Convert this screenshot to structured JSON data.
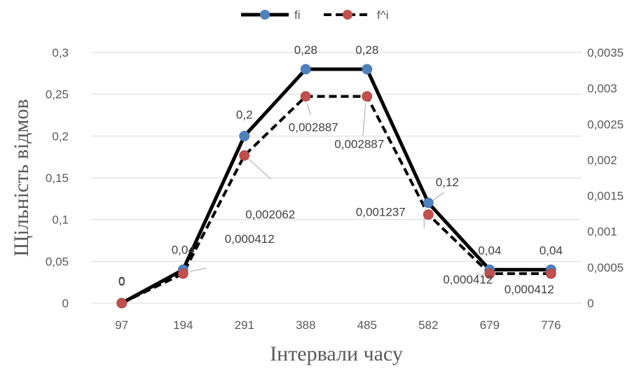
{
  "chart_data": {
    "type": "line",
    "categories": [
      "97",
      "194",
      "291",
      "388",
      "485",
      "582",
      "679",
      "776"
    ],
    "xlabel": "Інтервали часу",
    "ylabel": "Щільність відмов",
    "ylim": [
      0,
      0.3
    ],
    "y2lim": [
      0,
      0.0035
    ],
    "yticks": [
      "0",
      "0,05",
      "0,1",
      "0,15",
      "0,2",
      "0,25",
      "0,3"
    ],
    "y2ticks": [
      "0",
      "0,0005",
      "0,001",
      "0,0015",
      "0,002",
      "0,0025",
      "0,003",
      "0,0035"
    ],
    "legend_position": "top",
    "grid": true,
    "series": [
      {
        "name": "fi",
        "axis": "left",
        "style": "solid",
        "marker_color": "#4F81BD",
        "values": [
          0,
          0.04,
          0.2,
          0.28,
          0.28,
          0.12,
          0.04,
          0.04
        ],
        "labels": [
          "0",
          "0,04",
          "0,2",
          "0,28",
          "0,28",
          "0,12",
          "0,04",
          "0,04"
        ]
      },
      {
        "name": "f^i",
        "axis": "right",
        "style": "dashed",
        "marker_color": "#C0504D",
        "values": [
          0,
          0.000412,
          0.002062,
          0.002887,
          0.002887,
          0.001237,
          0.000412,
          0.000412
        ],
        "labels": [
          "0",
          "0,000412",
          "0,002062",
          "0,002887",
          "0,002887",
          "0,001237",
          "0,000412",
          "0,000412"
        ]
      }
    ]
  }
}
